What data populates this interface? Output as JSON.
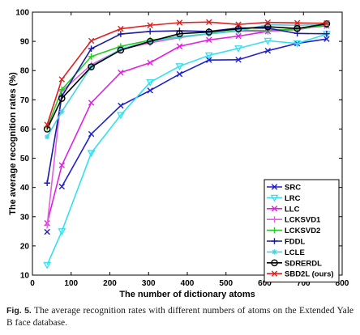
{
  "caption": {
    "label": "Fig. 5.",
    "text": "The average recognition rates with different numbers of atoms on the Extended Yale B face database."
  },
  "chart_data": {
    "type": "line",
    "xlabel": "The number of dictionary atoms",
    "ylabel": "The average recognition rates (%)",
    "xlim": [
      0,
      800
    ],
    "ylim": [
      10,
      100
    ],
    "xticks": [
      0,
      100,
      200,
      300,
      400,
      500,
      600,
      700,
      800
    ],
    "yticks": [
      10,
      20,
      30,
      40,
      50,
      60,
      70,
      80,
      90,
      100
    ],
    "grid": false,
    "legend_position": "bottom-right",
    "x": [
      38,
      76,
      152,
      228,
      304,
      380,
      456,
      532,
      608,
      684,
      760
    ],
    "series": [
      {
        "name": "SRC",
        "color": "#1f1fd0",
        "marker": "x",
        "values": [
          null,
          40.3,
          58.3,
          68.0,
          73.2,
          78.8,
          83.6,
          83.7,
          86.8,
          89.3,
          90.8
        ]
      },
      {
        "name": "LRC",
        "color": "#33e0f0",
        "marker": "triangle-down",
        "values": [
          13.5,
          25.0,
          51.8,
          64.8,
          76.0,
          81.5,
          85.2,
          87.6,
          90.2,
          89.3,
          92.5
        ]
      },
      {
        "name": "LLC",
        "color": "#e020e0",
        "marker": "x",
        "values": [
          27.8,
          47.6,
          69.0,
          79.3,
          82.7,
          88.3,
          90.5,
          91.8,
          93.4,
          94.4,
          95.3
        ]
      },
      {
        "name": "LCKSVD1",
        "color": "#e060e0",
        "marker": "plus",
        "values": [
          27.0,
          73.0,
          82.0,
          87.2,
          89.5,
          91.3,
          92.6,
          93.5,
          93.4,
          94.0,
          95.6
        ]
      },
      {
        "name": "LCKSVD2",
        "color": "#22cc22",
        "marker": "plus",
        "values": [
          60.5,
          73.5,
          84.8,
          88.3,
          90.4,
          91.6,
          92.6,
          93.8,
          93.7,
          94.3,
          95.5
        ]
      },
      {
        "name": "FDDL",
        "color": "#1a1aa0",
        "marker": "plus",
        "values": [
          41.5,
          71.2,
          87.5,
          92.5,
          93.4,
          93.6,
          93.4,
          94.6,
          94.5,
          92.7,
          92.6
        ]
      },
      {
        "name": "LCLE",
        "color": "#44d4e4",
        "marker": "asterisk",
        "values": [
          57.3,
          66.0,
          81.4,
          87.4,
          90.0,
          91.5,
          92.5,
          93.6,
          95.7,
          95.5,
          95.8
        ]
      },
      {
        "name": "SDRERDL",
        "color": "#000000",
        "marker": "circle",
        "values": [
          60.0,
          70.5,
          81.3,
          87.0,
          90.0,
          92.6,
          93.2,
          94.3,
          95.0,
          94.4,
          96.0
        ]
      },
      {
        "name": "SBD2L (ours)",
        "color": "#e02020",
        "marker": "x",
        "values": [
          61.5,
          77.0,
          90.2,
          94.3,
          95.5,
          96.4,
          96.6,
          95.8,
          96.5,
          96.3,
          96.2
        ]
      }
    ],
    "extra_points": [
      {
        "series": "SRC",
        "x": 38,
        "y": 24.8
      }
    ]
  }
}
